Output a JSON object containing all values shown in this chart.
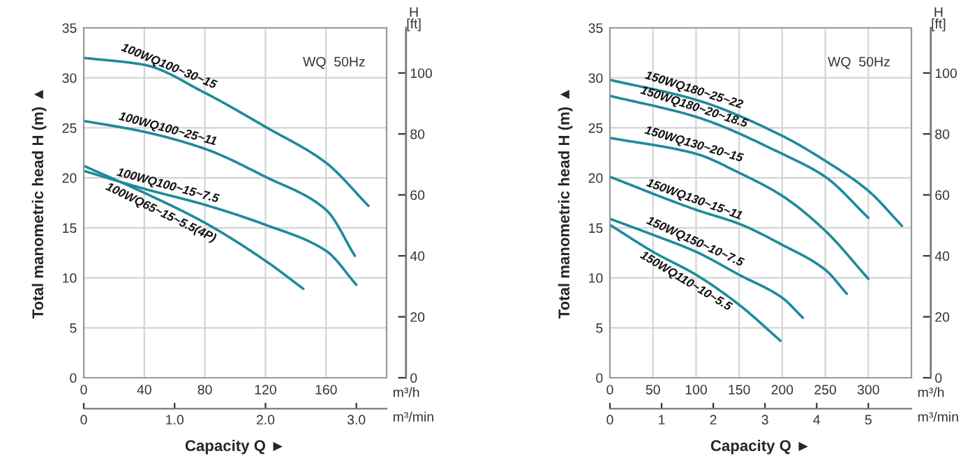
{
  "chart_data": [
    {
      "type": "line",
      "xlabel": "Capacity Q ►",
      "ylabel": "Total manometric head H (m) ▲",
      "y2label": "H\n[ft]",
      "x2label": "m³/min",
      "annotations": [
        "WQ  50Hz",
        "m³/h"
      ],
      "xlim": [
        0,
        200
      ],
      "xticks": [
        0,
        40,
        80,
        120,
        160
      ],
      "ylim": [
        0,
        35
      ],
      "yticks": [
        0,
        5,
        10,
        15,
        20,
        25,
        30,
        35
      ],
      "x2lim": [
        0,
        3.333
      ],
      "x2ticks": [
        {
          "value": 0,
          "label": "0"
        },
        {
          "value": 1,
          "label": "1.0"
        },
        {
          "value": 2,
          "label": "2.0"
        },
        {
          "value": 3,
          "label": "3.0"
        }
      ],
      "y2lim": [
        0,
        114.8
      ],
      "y2ticks": [
        0,
        20,
        40,
        60,
        80,
        100
      ],
      "grid": true,
      "legend": false,
      "marker": "none",
      "line_style": "solid",
      "series": [
        {
          "name": "100WQ100~30~15",
          "color": "#1f8a9a",
          "x": [
            0,
            40,
            80,
            120,
            160,
            188
          ],
          "values": [
            32,
            31.3,
            28.5,
            25.1,
            21.5,
            17.2
          ]
        },
        {
          "name": "100WQ100~25~11",
          "color": "#1f8a9a",
          "x": [
            0,
            40,
            80,
            120,
            160,
            179
          ],
          "values": [
            25.7,
            24.6,
            22.9,
            20.1,
            16.8,
            12.2
          ]
        },
        {
          "name": "100WQ100~15~7.5",
          "color": "#1f8a9a",
          "x": [
            0,
            40,
            80,
            120,
            160,
            180
          ],
          "values": [
            20.7,
            18.9,
            17.3,
            15.3,
            12.7,
            9.3
          ]
        },
        {
          "name": "100WQ65~15~5.5(4P)",
          "color": "#1f8a9a",
          "x": [
            0,
            40,
            80,
            120,
            145
          ],
          "values": [
            21.2,
            18.5,
            15.5,
            11.7,
            8.9
          ]
        }
      ]
    },
    {
      "type": "line",
      "xlabel": "Capacity Q ►",
      "ylabel": "Total manometric head H (m) ▲",
      "y2label": "H\n[ft]",
      "x2label": "m³/min",
      "annotations": [
        "WQ  50Hz",
        "m³/h"
      ],
      "xlim": [
        0,
        350
      ],
      "xticks": [
        0,
        50,
        100,
        150,
        200,
        250,
        300
      ],
      "ylim": [
        0,
        35
      ],
      "yticks": [
        0,
        5,
        10,
        15,
        20,
        25,
        30,
        35
      ],
      "x2lim": [
        0,
        5.833
      ],
      "x2ticks": [
        0,
        1,
        2,
        3,
        4,
        5
      ],
      "y2lim": [
        0,
        114.8
      ],
      "y2ticks": [
        0,
        20,
        40,
        60,
        80,
        100
      ],
      "grid": true,
      "legend": false,
      "marker": "none",
      "line_style": "solid",
      "series": [
        {
          "name": "150WQ180~25~22",
          "color": "#1f8a9a",
          "x": [
            0,
            100,
            200,
            250,
            300,
            339
          ],
          "values": [
            29.8,
            27.8,
            24.2,
            21.7,
            18.7,
            15.2
          ]
        },
        {
          "name": "150WQ180~20~18.5",
          "color": "#1f8a9a",
          "x": [
            0,
            100,
            200,
            250,
            300
          ],
          "values": [
            28.2,
            26.1,
            22.4,
            20.1,
            16.0
          ]
        },
        {
          "name": "150WQ130~20~15",
          "color": "#1f8a9a",
          "x": [
            0,
            100,
            150,
            200,
            250,
            300
          ],
          "values": [
            24.0,
            22.4,
            20.5,
            18.2,
            14.7,
            9.9
          ]
        },
        {
          "name": "150WQ130~15~11",
          "color": "#1f8a9a",
          "x": [
            0,
            100,
            150,
            200,
            250,
            275
          ],
          "values": [
            20.1,
            16.8,
            15.4,
            13.3,
            10.8,
            8.4
          ]
        },
        {
          "name": "150WQ150~10~7.5",
          "color": "#1f8a9a",
          "x": [
            0,
            50,
            100,
            150,
            200,
            224
          ],
          "values": [
            15.9,
            14.3,
            12.6,
            10.3,
            8.0,
            6.0
          ]
        },
        {
          "name": "150WQ110~10~5.5",
          "color": "#1f8a9a",
          "x": [
            0,
            50,
            100,
            150,
            198
          ],
          "values": [
            15.3,
            12.6,
            10.3,
            7.3,
            3.7
          ]
        }
      ]
    }
  ]
}
